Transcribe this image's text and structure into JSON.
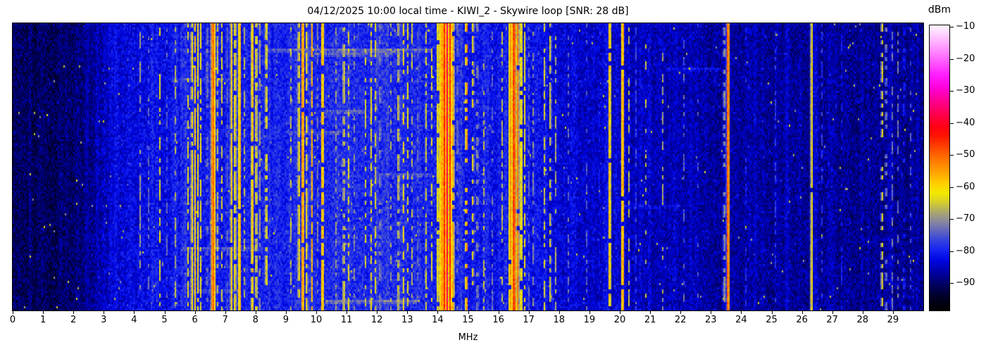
{
  "title": "04/12/2025 10:00 local time - KIWI_2 - Skywire loop [SNR: 28 dB]",
  "axis": {
    "label": "MHz",
    "tick_values": [
      0,
      1,
      2,
      3,
      4,
      5,
      6,
      7,
      8,
      9,
      10,
      11,
      12,
      13,
      14,
      15,
      16,
      17,
      18,
      19,
      20,
      21,
      22,
      23,
      24,
      25,
      26,
      27,
      28,
      29
    ]
  },
  "colorbar": {
    "unit": "dBm",
    "vmin": -98.8,
    "vmax": -9.3,
    "ticks": [
      {
        "value": -10,
        "label": "−10"
      },
      {
        "value": -20,
        "label": "−20"
      },
      {
        "value": -30,
        "label": "−30"
      },
      {
        "value": -40,
        "label": "−40"
      },
      {
        "value": -50,
        "label": "−50"
      },
      {
        "value": -60,
        "label": "−60"
      },
      {
        "value": -70,
        "label": "−70"
      },
      {
        "value": -80,
        "label": "−80"
      },
      {
        "value": -90,
        "label": "−90"
      }
    ]
  },
  "chart_data": {
    "type": "heatmap",
    "subtype": "radio-spectrogram-waterfall",
    "title": "04/12/2025 10:00 local time - KIWI_2 - Skywire loop [SNR: 28 dB]",
    "xlabel": "MHz",
    "x_range": [
      0,
      30
    ],
    "y_axis": "time (no tick labels shown)",
    "color_unit": "dBm",
    "color_range": [
      -98.8,
      -9.3
    ],
    "legend_position": "right-colorbar",
    "grid": false,
    "colormap_stops_format": [
      "level_dbm",
      "hex_color"
    ],
    "colormap_stops": [
      [
        -100,
        "#000000"
      ],
      [
        -95,
        "#000020"
      ],
      [
        -91,
        "#00005a"
      ],
      [
        -87,
        "#0000a0"
      ],
      [
        -83,
        "#0006e2"
      ],
      [
        -80,
        "#1422f2"
      ],
      [
        -77,
        "#3240e0"
      ],
      [
        -74,
        "#5e64c0"
      ],
      [
        -71,
        "#8886a0"
      ],
      [
        -68,
        "#aaa66e"
      ],
      [
        -65,
        "#d2cc30"
      ],
      [
        -62,
        "#f2e800"
      ],
      [
        -59,
        "#ffd000"
      ],
      [
        -56,
        "#ffaa00"
      ],
      [
        -53,
        "#ff8800"
      ],
      [
        -50,
        "#ff6400"
      ],
      [
        -47,
        "#ff3c00"
      ],
      [
        -44,
        "#ff1400"
      ],
      [
        -41,
        "#ff0014"
      ],
      [
        -37,
        "#ff0050"
      ],
      [
        -33,
        "#ff0090"
      ],
      [
        -29,
        "#ff00d8"
      ],
      [
        -25,
        "#ff1cff"
      ],
      [
        -20,
        "#ff64ff"
      ],
      [
        -15,
        "#ffaaff"
      ],
      [
        -9,
        "#fff6ff"
      ]
    ],
    "noise_floor_format": [
      "mhz",
      "dbm"
    ],
    "noise_floor_dbm": [
      [
        0,
        -96.5
      ],
      [
        1.5,
        -96
      ],
      [
        2.5,
        -93
      ],
      [
        3.2,
        -89
      ],
      [
        4,
        -87.5
      ],
      [
        5,
        -87
      ],
      [
        6.5,
        -85.5
      ],
      [
        9,
        -85
      ],
      [
        11,
        -84
      ],
      [
        13,
        -84.5
      ],
      [
        15,
        -86
      ],
      [
        17,
        -87
      ],
      [
        18.5,
        -88.5
      ],
      [
        20,
        -90
      ],
      [
        21,
        -91
      ],
      [
        22,
        -90.5
      ],
      [
        23,
        -91.5
      ],
      [
        24.5,
        -92
      ],
      [
        26,
        -92
      ],
      [
        27.5,
        -92.5
      ],
      [
        30,
        -92.5
      ]
    ],
    "signal_bands_format": [
      "center_mhz",
      "half_width_mhz",
      "peak_level_dbm",
      "duty_cycle"
    ],
    "signal_bands": [
      [
        3.35,
        0.08,
        -82,
        1
      ],
      [
        3.62,
        0.04,
        -76,
        0.4
      ],
      [
        4.21,
        0.04,
        -66,
        0.45
      ],
      [
        4.47,
        0.04,
        -74,
        0.35
      ],
      [
        4.85,
        0.04,
        -63,
        0.55
      ],
      [
        5.06,
        0.04,
        -70,
        0.35
      ],
      [
        5.37,
        0.04,
        -64,
        0.5
      ],
      [
        5.56,
        0.04,
        -72,
        0.55
      ],
      [
        5.66,
        0.04,
        -70,
        0.5
      ],
      [
        5.77,
        0.04,
        -63,
        0.6
      ],
      [
        5.9,
        0.05,
        -60,
        0.9
      ],
      [
        6.0,
        0.05,
        -59,
        0.95
      ],
      [
        6.1,
        0.05,
        -61,
        0.85
      ],
      [
        6.19,
        0.04,
        -63,
        0.7
      ],
      [
        6.4,
        0.04,
        -66,
        0.5
      ],
      [
        6.6,
        0.09,
        -50,
        1
      ],
      [
        6.73,
        0.04,
        -62,
        0.6
      ],
      [
        6.88,
        0.04,
        -64,
        0.55
      ],
      [
        7.05,
        0.04,
        -68,
        0.5
      ],
      [
        7.2,
        0.05,
        -59,
        0.95
      ],
      [
        7.32,
        0.05,
        -60,
        0.85
      ],
      [
        7.47,
        0.06,
        -55,
        0.95
      ],
      [
        7.62,
        0.04,
        -66,
        0.5
      ],
      [
        7.89,
        0.05,
        -56,
        0.9
      ],
      [
        8.02,
        0.05,
        -61,
        0.8
      ],
      [
        8.12,
        0.04,
        -64,
        0.6
      ],
      [
        8.35,
        0.05,
        -60,
        0.55
      ],
      [
        8.48,
        0.04,
        -72,
        0.45
      ],
      [
        9.15,
        0.04,
        -65,
        0.5
      ],
      [
        9.42,
        0.05,
        -60,
        0.8
      ],
      [
        9.55,
        0.06,
        -52,
        0.95
      ],
      [
        9.68,
        0.05,
        -61,
        0.8
      ],
      [
        9.85,
        0.05,
        -57,
        0.85
      ],
      [
        10.05,
        0.04,
        -70,
        0.5
      ],
      [
        10.2,
        0.05,
        -53,
        0.9
      ],
      [
        10.65,
        0.04,
        -68,
        0.4
      ],
      [
        10.9,
        0.05,
        -62,
        0.6
      ],
      [
        11.06,
        0.05,
        -63,
        0.55
      ],
      [
        11.25,
        0.04,
        -70,
        0.4
      ],
      [
        11.62,
        0.05,
        -64,
        0.5
      ],
      [
        11.8,
        0.05,
        -62,
        0.6
      ],
      [
        11.95,
        0.05,
        -63,
        0.6
      ],
      [
        12.1,
        0.04,
        -65,
        0.5
      ],
      [
        12.45,
        0.04,
        -68,
        0.4
      ],
      [
        12.7,
        0.05,
        -63,
        0.55
      ],
      [
        12.86,
        0.05,
        -61,
        0.65
      ],
      [
        13.0,
        0.05,
        -63,
        0.6
      ],
      [
        13.15,
        0.04,
        -66,
        0.5
      ],
      [
        13.35,
        0.04,
        -68,
        0.4
      ],
      [
        13.6,
        0.05,
        -64,
        0.5
      ],
      [
        13.8,
        0.04,
        -63,
        0.5
      ],
      [
        14.0,
        0.05,
        -59,
        0.8
      ],
      [
        14.1,
        0.05,
        -52,
        1
      ],
      [
        14.21,
        0.07,
        -45,
        1
      ],
      [
        14.3,
        0.04,
        -37,
        1
      ],
      [
        14.4,
        0.06,
        -46,
        1
      ],
      [
        14.5,
        0.05,
        -56,
        0.9
      ],
      [
        14.65,
        0.04,
        -66,
        0.5
      ],
      [
        14.94,
        0.05,
        -52,
        0.5
      ],
      [
        15.15,
        0.05,
        -61,
        0.55
      ],
      [
        15.3,
        0.04,
        -64,
        0.5
      ],
      [
        15.5,
        0.04,
        -65,
        0.45
      ],
      [
        15.8,
        0.04,
        -71,
        0.4
      ],
      [
        16.1,
        0.04,
        -64,
        0.55
      ],
      [
        16.38,
        0.06,
        -53,
        0.95
      ],
      [
        16.5,
        0.08,
        -46,
        1
      ],
      [
        16.62,
        0.06,
        -52,
        0.95
      ],
      [
        16.74,
        0.05,
        -58,
        0.85
      ],
      [
        16.85,
        0.04,
        -62,
        0.6
      ],
      [
        16.98,
        0.04,
        -71,
        0.55
      ],
      [
        17.15,
        0.04,
        -66,
        0.5
      ],
      [
        17.5,
        0.05,
        -64,
        0.5
      ],
      [
        17.7,
        0.05,
        -63,
        0.55
      ],
      [
        17.88,
        0.04,
        -67,
        0.45
      ],
      [
        18.3,
        0.04,
        -72,
        0.35
      ],
      [
        18.9,
        0.04,
        -74,
        0.3
      ],
      [
        19.65,
        0.06,
        -57,
        0.95
      ],
      [
        20.08,
        0.05,
        -52,
        0.95
      ],
      [
        20.28,
        0.04,
        -66,
        0.5
      ],
      [
        20.5,
        0.04,
        -72,
        0.5
      ],
      [
        20.85,
        0.04,
        -65,
        0.3
      ],
      [
        21.4,
        0.04,
        -68,
        0.3
      ],
      [
        22.1,
        0.04,
        -74,
        0.4
      ],
      [
        22.55,
        0.04,
        -75,
        0.3
      ],
      [
        23.42,
        0.04,
        -64,
        0.4
      ],
      [
        23.55,
        0.06,
        -48,
        1
      ],
      [
        24.15,
        0.04,
        -76,
        0.3
      ],
      [
        25.1,
        0.04,
        -77,
        0.3
      ],
      [
        26.3,
        0.05,
        -60,
        0.97
      ],
      [
        26.65,
        0.04,
        -76,
        0.4
      ],
      [
        27.3,
        0.04,
        -78,
        0.3
      ],
      [
        28.62,
        0.05,
        -62,
        0.45
      ],
      [
        28.75,
        0.04,
        -66,
        0.35
      ],
      [
        28.95,
        0.04,
        -72,
        0.4
      ],
      [
        29.15,
        0.04,
        -72,
        0.35
      ],
      [
        29.35,
        0.04,
        -73,
        0.35
      ],
      [
        29.55,
        0.04,
        -74,
        0.3
      ]
    ],
    "time_streaks_format": [
      "time_fraction_from_top",
      "from_mhz",
      "to_mhz",
      "boost_db"
    ],
    "time_streaks": [
      [
        0.085,
        8.3,
        13.8,
        5
      ],
      [
        0.1,
        9.5,
        12.5,
        4
      ],
      [
        0.155,
        21.5,
        23.3,
        4
      ],
      [
        0.19,
        5.2,
        7.2,
        3
      ],
      [
        0.3,
        10.2,
        11.6,
        4
      ],
      [
        0.375,
        9.0,
        10.8,
        3
      ],
      [
        0.52,
        12.0,
        13.8,
        3
      ],
      [
        0.63,
        20.0,
        22.0,
        3
      ],
      [
        0.78,
        5.5,
        8.2,
        4
      ],
      [
        0.93,
        6.0,
        7.5,
        3
      ],
      [
        0.965,
        10.3,
        13.3,
        6
      ]
    ]
  }
}
